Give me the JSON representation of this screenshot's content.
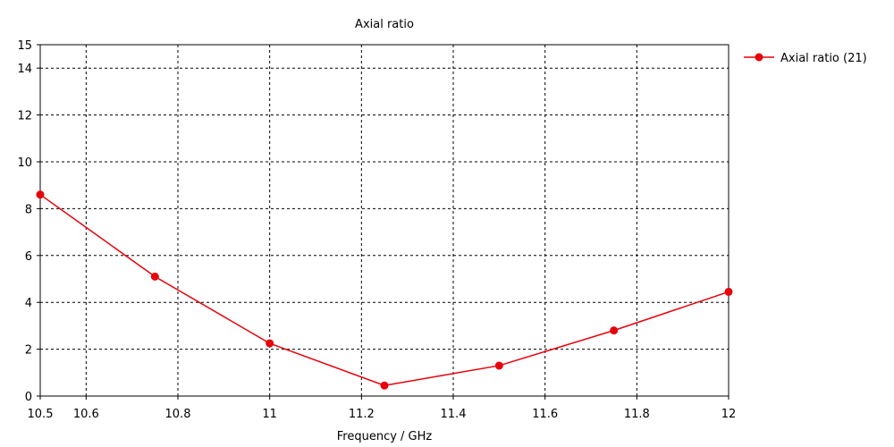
{
  "chart_data": {
    "type": "line",
    "title": "Axial ratio",
    "xlabel": "Frequency / GHz",
    "ylabel": "",
    "xlim": [
      10.5,
      12
    ],
    "ylim": [
      0,
      15
    ],
    "x_ticks": [
      10.5,
      10.6,
      10.8,
      11,
      11.2,
      11.4,
      11.6,
      11.8,
      12
    ],
    "x_tick_labels": [
      "10.5",
      "10.6",
      "10.8",
      "11",
      "11.2",
      "11.4",
      "11.6",
      "11.8",
      "12"
    ],
    "y_ticks": [
      0,
      2,
      4,
      6,
      8,
      10,
      12,
      14,
      15
    ],
    "y_tick_labels": [
      "0",
      "2",
      "4",
      "6",
      "8",
      "10",
      "12",
      "14",
      "15"
    ],
    "grid": true,
    "legend_position": "top-right outside",
    "series": [
      {
        "name": "Axial ratio (21)",
        "color": "#e8000b",
        "x": [
          10.5,
          10.75,
          11,
          11.25,
          11.5,
          11.75,
          12
        ],
        "y": [
          8.6,
          5.1,
          2.25,
          0.45,
          1.3,
          2.8,
          4.45
        ]
      }
    ]
  }
}
